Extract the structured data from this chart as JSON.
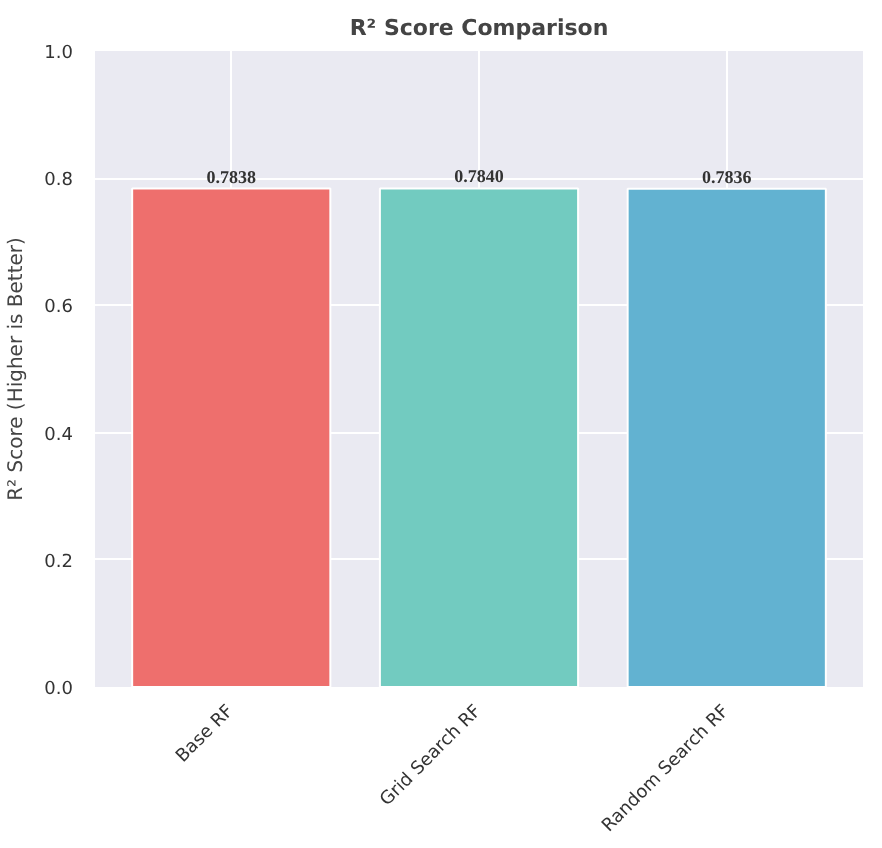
{
  "chart_data": {
    "type": "bar",
    "title": "R² Score Comparison",
    "ylabel": "R² Score (Higher is Better)",
    "categories": [
      "Base RF",
      "Grid Search RF",
      "Random Search RF"
    ],
    "values": [
      0.7838,
      0.784,
      0.7836
    ],
    "colors": [
      "#ee6f6d",
      "#72cbc0",
      "#62b2d1"
    ],
    "value_labels": [
      "0.7838",
      "0.7840",
      "0.7836"
    ],
    "ylim": [
      0,
      1.0
    ],
    "yticks": [
      {
        "value": 0,
        "label": "0.0"
      },
      {
        "value": 0.2,
        "label": "0.2"
      },
      {
        "value": 0.4,
        "label": "0.4"
      },
      {
        "value": 0.6,
        "label": "0.6"
      },
      {
        "value": 0.8,
        "label": "0.8"
      },
      {
        "value": 1.0,
        "label": "1.0"
      }
    ],
    "grid": true
  }
}
